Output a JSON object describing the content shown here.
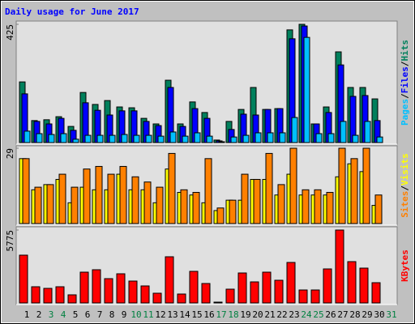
{
  "chart_data": [
    {
      "type": "bar",
      "title": "Daily usage for June 2017",
      "ylim": [
        0,
        425
      ],
      "yticks": [
        425
      ],
      "legend_separator": "/",
      "series": [
        {
          "name": "Hits",
          "color": "#00805c",
          "values": [
            218,
            79,
            82,
            93,
            58,
            180,
            137,
            151,
            128,
            125,
            87,
            67,
            224,
            67,
            146,
            108,
            9,
            76,
            119,
            198,
            119,
            122,
            405,
            425,
            67,
            128,
            326,
            198,
            198,
            157,
            null
          ]
        },
        {
          "name": "Files",
          "color": "#0000ff",
          "values": [
            175,
            76,
            67,
            87,
            44,
            143,
            116,
            99,
            114,
            114,
            76,
            61,
            198,
            58,
            122,
            87,
            6,
            47,
            102,
            99,
            119,
            122,
            373,
            419,
            67,
            108,
            279,
            166,
            169,
            79,
            null
          ]
        },
        {
          "name": "Pages",
          "color": "#00c0ff",
          "values": [
            41,
            32,
            29,
            32,
            12,
            26,
            26,
            26,
            29,
            26,
            26,
            23,
            38,
            23,
            35,
            23,
            3,
            20,
            26,
            35,
            35,
            35,
            90,
            378,
            32,
            32,
            76,
            26,
            76,
            20,
            null
          ]
        }
      ]
    },
    {
      "type": "bar",
      "ylim": [
        0,
        29
      ],
      "yticks": [
        29
      ],
      "legend_separator": "/",
      "series": [
        {
          "name": "Visits",
          "color": "#ffff00",
          "values": [
            25,
            13,
            15,
            17,
            8,
            14,
            13,
            13,
            19,
            13,
            13,
            8,
            21,
            12,
            11,
            8,
            5,
            9,
            9,
            17,
            17,
            11,
            19,
            11,
            11,
            11,
            18,
            23,
            20,
            7,
            null
          ]
        },
        {
          "name": "Sites",
          "color": "#ff8000",
          "values": [
            25,
            14,
            15,
            19,
            14,
            21,
            22,
            19,
            22,
            18,
            16,
            14,
            27,
            13,
            12,
            25,
            6,
            9,
            19,
            17,
            27,
            15,
            29,
            13,
            13,
            12,
            29,
            25,
            29,
            11,
            null
          ]
        }
      ]
    },
    {
      "type": "bar",
      "ylim": [
        0,
        5775
      ],
      "yticks": [
        5775
      ],
      "categories": [
        "1",
        "2",
        "3",
        "4",
        "5",
        "6",
        "7",
        "8",
        "9",
        "10",
        "11",
        "12",
        "13",
        "14",
        "15",
        "16",
        "17",
        "18",
        "19",
        "20",
        "21",
        "22",
        "23",
        "24",
        "25",
        "26",
        "27",
        "28",
        "29",
        "30",
        "31"
      ],
      "category_colors": [
        "#000000",
        "#000000",
        "#008040",
        "#008040",
        "#000000",
        "#000000",
        "#000000",
        "#000000",
        "#000000",
        "#008040",
        "#008040",
        "#000000",
        "#000000",
        "#000000",
        "#000000",
        "#000000",
        "#008040",
        "#008040",
        "#000000",
        "#000000",
        "#000000",
        "#000000",
        "#000000",
        "#008040",
        "#008040",
        "#000000",
        "#000000",
        "#000000",
        "#000000",
        "#000000",
        "#008040"
      ],
      "series": [
        {
          "name": "KBytes",
          "color": "#ff0000",
          "values": [
            3786,
            1283,
            1155,
            1283,
            642,
            2438,
            2631,
            1925,
            2310,
            1733,
            1348,
            770,
            3658,
            706,
            2503,
            1540,
            64,
            1091,
            2374,
            1668,
            2438,
            1797,
            3208,
            1027,
            1027,
            2695,
            5775,
            3273,
            2759,
            1604,
            null
          ]
        }
      ]
    }
  ]
}
